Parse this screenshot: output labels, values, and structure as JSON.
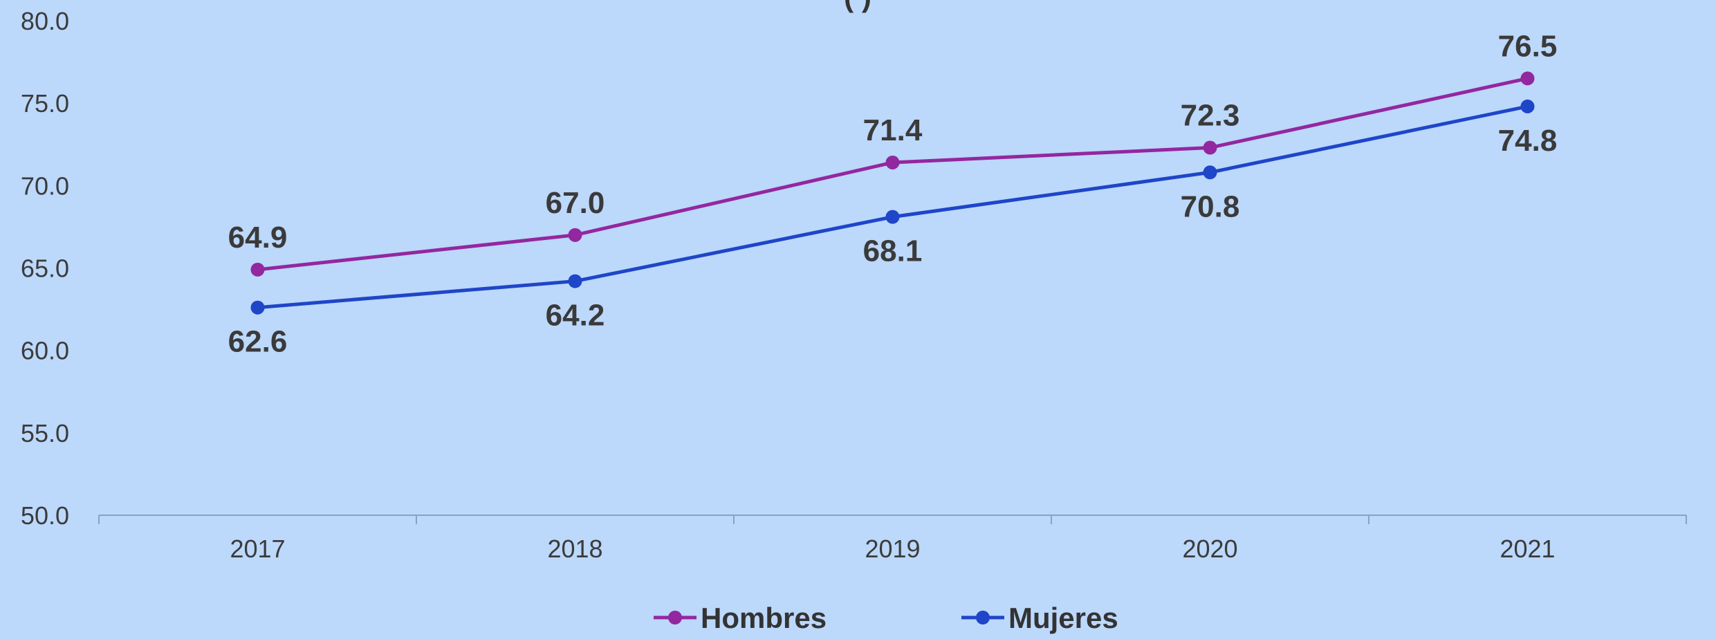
{
  "chart_data": {
    "type": "line",
    "title_visible": "(                    )",
    "categories": [
      "2017",
      "2018",
      "2019",
      "2020",
      "2021"
    ],
    "series": [
      {
        "name": "Hombres",
        "color": "#9327a0",
        "values": [
          64.9,
          67.0,
          71.4,
          72.3,
          76.5
        ],
        "value_labels": [
          "64.9",
          "67.0",
          "71.4",
          "72.3",
          "76.5"
        ],
        "label_position": "above"
      },
      {
        "name": "Mujeres",
        "color": "#1f45c8",
        "values": [
          62.6,
          64.2,
          68.1,
          70.8,
          74.8
        ],
        "value_labels": [
          "62.6",
          "64.2",
          "68.1",
          "70.8",
          "74.8"
        ],
        "label_position": "below"
      }
    ],
    "y_ticks": [
      "50.0",
      "55.0",
      "60.0",
      "65.0",
      "70.0",
      "75.0",
      "80.0"
    ],
    "ylim": [
      50,
      80
    ],
    "grid": false,
    "legend": "bottom-center",
    "axis_color": "#8aa3bf",
    "background": "#bcd8fb"
  }
}
